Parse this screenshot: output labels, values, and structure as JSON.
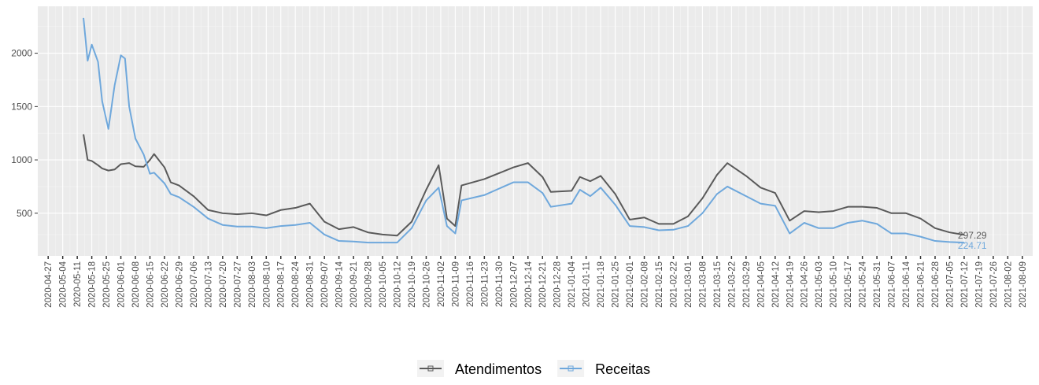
{
  "chart_data": {
    "type": "line",
    "x": [
      "2020-05-14",
      "2020-05-16",
      "2020-05-18",
      "2020-05-21",
      "2020-05-23",
      "2020-05-26",
      "2020-05-29",
      "2020-06-01",
      "2020-06-03",
      "2020-06-05",
      "2020-06-08",
      "2020-06-12",
      "2020-06-15",
      "2020-06-17",
      "2020-06-22",
      "2020-06-25",
      "2020-06-29",
      "2020-07-06",
      "2020-07-13",
      "2020-07-20",
      "2020-07-27",
      "2020-08-03",
      "2020-08-10",
      "2020-08-17",
      "2020-08-24",
      "2020-08-31",
      "2020-09-07",
      "2020-09-14",
      "2020-09-21",
      "2020-09-28",
      "2020-10-05",
      "2020-10-12",
      "2020-10-19",
      "2020-10-26",
      "2020-11-01",
      "2020-11-05",
      "2020-11-09",
      "2020-11-12",
      "2020-11-23",
      "2020-12-07",
      "2020-12-14",
      "2020-12-21",
      "2020-12-25",
      "2021-01-04",
      "2021-01-08",
      "2021-01-13",
      "2021-01-18",
      "2021-01-25",
      "2021-02-01",
      "2021-02-08",
      "2021-02-15",
      "2021-02-22",
      "2021-03-01",
      "2021-03-08",
      "2021-03-15",
      "2021-03-20",
      "2021-03-29",
      "2021-04-05",
      "2021-04-12",
      "2021-04-19",
      "2021-04-26",
      "2021-05-03",
      "2021-05-10",
      "2021-05-17",
      "2021-05-24",
      "2021-05-31",
      "2021-06-07",
      "2021-06-14",
      "2021-06-21",
      "2021-06-28",
      "2021-07-05",
      "2021-07-12"
    ],
    "series": [
      {
        "name": "Atendimentos",
        "color": "#5a5a5a",
        "values": [
          1240,
          1000,
          990,
          950,
          920,
          900,
          910,
          960,
          965,
          970,
          940,
          935,
          1000,
          1055,
          930,
          790,
          760,
          660,
          530,
          500,
          490,
          500,
          480,
          530,
          550,
          590,
          420,
          350,
          370,
          320,
          300,
          290,
          420,
          720,
          950,
          450,
          380,
          760,
          820,
          930,
          970,
          840,
          700,
          710,
          840,
          800,
          850,
          680,
          440,
          460,
          400,
          400,
          470,
          640,
          860,
          970,
          850,
          740,
          690,
          430,
          520,
          510,
          520,
          560,
          560,
          550,
          500,
          500,
          450,
          360,
          320,
          297.29
        ]
      },
      {
        "name": "Receitas",
        "color": "#6fa8dc",
        "values": [
          2330,
          1930,
          2080,
          1920,
          1550,
          1290,
          1700,
          1980,
          1950,
          1500,
          1200,
          1050,
          870,
          880,
          780,
          680,
          650,
          560,
          450,
          390,
          375,
          375,
          360,
          380,
          390,
          410,
          300,
          240,
          235,
          225,
          225,
          225,
          360,
          620,
          740,
          380,
          310,
          620,
          670,
          790,
          790,
          690,
          560,
          590,
          720,
          660,
          740,
          580,
          380,
          370,
          340,
          345,
          380,
          500,
          680,
          750,
          660,
          590,
          570,
          310,
          410,
          360,
          360,
          410,
          430,
          400,
          310,
          310,
          280,
          240,
          230,
          224.71
        ]
      }
    ],
    "xlim": [
      "2020-04-22",
      "2021-08-14"
    ],
    "xticks": [
      "2020-04-27",
      "2020-05-04",
      "2020-05-11",
      "2020-05-18",
      "2020-05-25",
      "2020-06-01",
      "2020-06-08",
      "2020-06-15",
      "2020-06-22",
      "2020-06-29",
      "2020-07-06",
      "2020-07-13",
      "2020-07-20",
      "2020-07-27",
      "2020-08-03",
      "2020-08-10",
      "2020-08-17",
      "2020-08-24",
      "2020-08-31",
      "2020-09-07",
      "2020-09-14",
      "2020-09-21",
      "2020-09-28",
      "2020-10-05",
      "2020-10-12",
      "2020-10-19",
      "2020-10-26",
      "2020-11-02",
      "2020-11-09",
      "2020-11-16",
      "2020-11-23",
      "2020-11-30",
      "2020-12-07",
      "2020-12-14",
      "2020-12-21",
      "2020-12-28",
      "2021-01-04",
      "2021-01-11",
      "2021-01-18",
      "2021-01-25",
      "2021-02-01",
      "2021-02-08",
      "2021-02-15",
      "2021-02-22",
      "2021-03-01",
      "2021-03-08",
      "2021-03-15",
      "2021-03-22",
      "2021-03-29",
      "2021-04-05",
      "2021-04-12",
      "2021-04-19",
      "2021-04-26",
      "2021-05-03",
      "2021-05-10",
      "2021-05-17",
      "2021-05-24",
      "2021-05-31",
      "2021-06-07",
      "2021-06-14",
      "2021-06-21",
      "2021-06-28",
      "2021-07-05",
      "2021-07-12",
      "2021-07-19",
      "2021-07-26",
      "2021-08-02",
      "2021-08-09"
    ],
    "ylim": [
      100,
      2440
    ],
    "yticks": [
      500,
      1000,
      1500,
      2000
    ],
    "grid": true,
    "legend": "bottom"
  }
}
